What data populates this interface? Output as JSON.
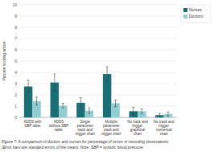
{
  "chart_data": {
    "type": "bar",
    "categories": [
      "ADDS with\nSBP table",
      "ADDS\nwithout SBP\ntable",
      "Single\nparameter\ntrack and\ntrigger chart",
      "Multiple\nparameter\ntrack and\ntrigger chart",
      "No track and\ntrigger\ngraphical\nchart",
      "No track and\ntrigger\nnumerical\nchart"
    ],
    "series": [
      {
        "name": "Nurses",
        "color": "#1a6e75",
        "values": [
          2.75,
          3.1,
          1.3,
          3.85,
          0.55,
          0.2
        ],
        "errors": [
          0.55,
          0.75,
          0.45,
          0.65,
          0.35,
          0.15
        ]
      },
      {
        "name": "Doctors",
        "color": "#92cdd1",
        "values": [
          1.45,
          1.05,
          0.6,
          1.25,
          0.55,
          0.3
        ],
        "errors": [
          0.35,
          0.2,
          0.25,
          0.3,
          0.2,
          0.18
        ]
      }
    ],
    "ylim": [
      0,
      10
    ],
    "yticks": [
      0,
      1,
      2,
      3,
      4,
      5,
      6,
      7,
      8,
      9,
      10
    ],
    "ylabel": "Percent scoring errors",
    "grid": true,
    "legend": "right",
    "annotations": [
      "Figure 7: A comparison of doctors and nurses for percentage of errors in recording observations",
      "(Error bars are standard errors of the mean). Note: SBP = systolic blood pressure."
    ]
  }
}
